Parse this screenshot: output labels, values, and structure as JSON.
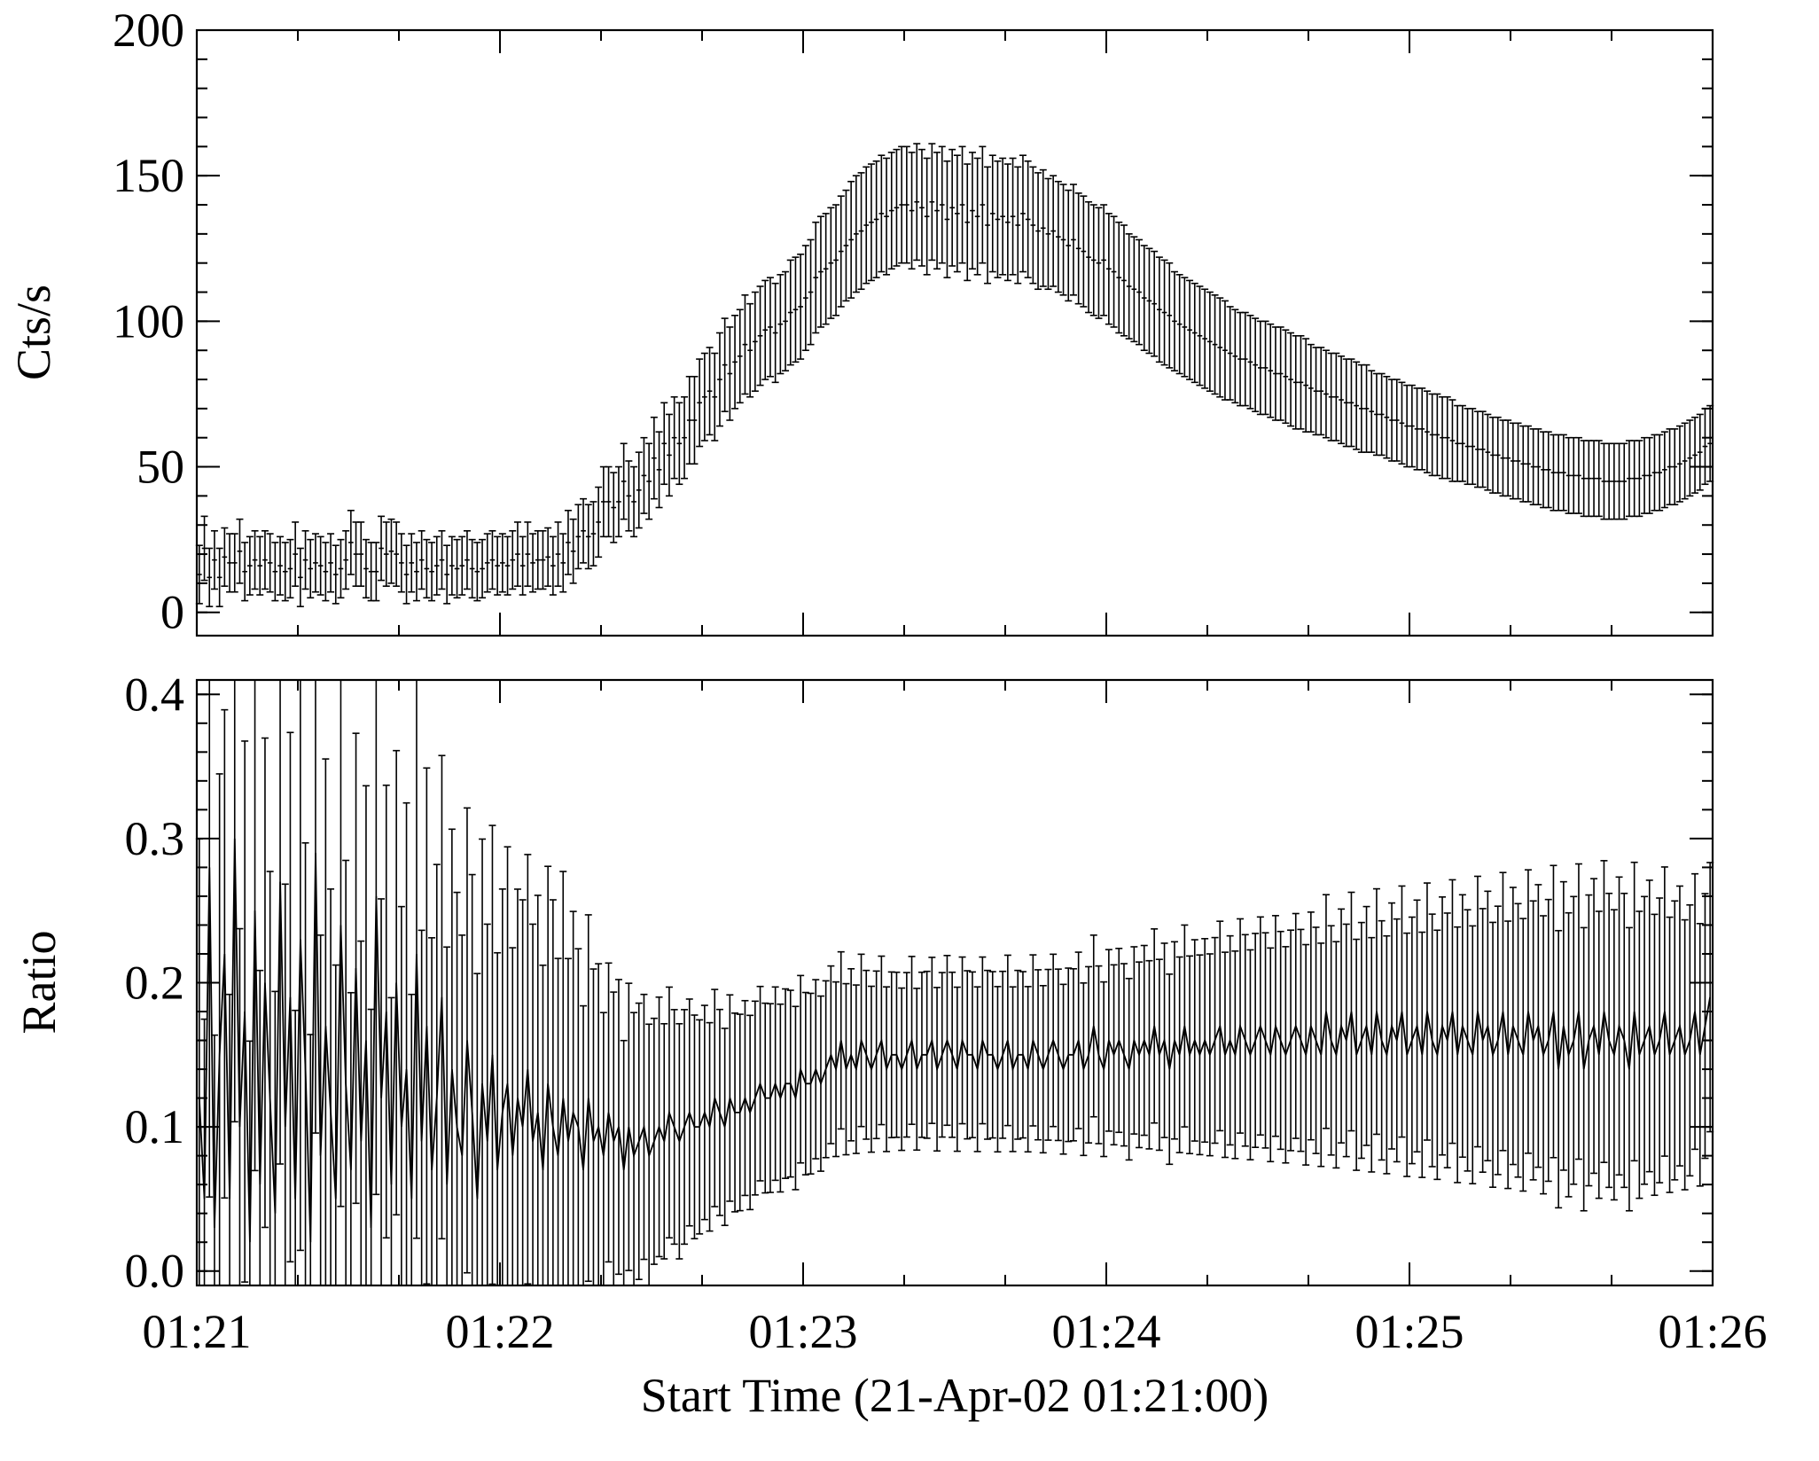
{
  "chart_data": [
    {
      "type": "scatter",
      "panel": "top",
      "ylabel": "Cts/s",
      "ylim": [
        -8,
        200
      ],
      "yticks": [
        "0",
        "50",
        "100",
        "150",
        "200"
      ],
      "xlim": [
        0,
        300
      ],
      "xlabel": "",
      "show_x_tick_labels": false,
      "error_bars": true,
      "bin_seconds": 1,
      "series": [
        {
          "values": [
            13,
            22,
            12,
            18,
            12,
            19,
            17,
            17,
            21,
            14,
            16,
            18,
            16,
            18,
            17,
            14,
            16,
            14,
            15,
            20,
            12,
            18,
            15,
            17,
            16,
            14,
            17,
            13,
            15,
            18,
            24,
            20,
            20,
            15,
            14,
            14,
            22,
            20,
            21,
            20,
            17,
            13,
            17,
            14,
            18,
            15,
            14,
            16,
            18,
            13,
            16,
            15,
            16,
            18,
            15,
            14,
            15,
            17,
            18,
            16,
            17,
            16,
            18,
            20,
            16,
            20,
            17,
            18,
            18,
            19,
            16,
            20,
            17,
            24,
            21,
            26,
            28,
            26,
            27,
            31,
            38,
            38,
            36,
            38,
            45,
            40,
            38,
            42,
            47,
            45,
            53,
            49,
            58,
            54,
            60,
            58,
            60,
            66,
            66,
            72,
            74,
            76,
            74,
            80,
            85,
            82,
            86,
            88,
            92,
            90,
            93,
            95,
            97,
            98,
            96,
            99,
            100,
            103,
            104,
            105,
            108,
            110,
            115,
            117,
            118,
            120,
            121,
            124,
            126,
            128,
            130,
            131,
            133,
            134,
            135,
            137,
            136,
            138,
            139,
            140,
            140,
            138,
            141,
            139,
            136,
            141,
            138,
            140,
            135,
            139,
            137,
            140,
            134,
            138,
            136,
            140,
            133,
            137,
            135,
            136,
            134,
            136,
            133,
            137,
            135,
            133,
            131,
            132,
            130,
            131,
            129,
            128,
            126,
            128,
            125,
            124,
            122,
            121,
            120,
            121,
            118,
            117,
            115,
            114,
            112,
            111,
            110,
            108,
            107,
            106,
            104,
            103,
            102,
            100,
            99,
            98,
            97,
            96,
            95,
            94,
            93,
            92,
            91,
            90,
            89,
            88,
            87,
            87,
            86,
            85,
            84,
            84,
            83,
            82,
            82,
            81,
            80,
            79,
            79,
            78,
            77,
            76,
            76,
            75,
            74,
            74,
            73,
            72,
            72,
            71,
            70,
            70,
            69,
            68,
            68,
            67,
            66,
            66,
            65,
            64,
            64,
            63,
            63,
            62,
            61,
            61,
            60,
            60,
            59,
            58,
            58,
            57,
            57,
            56,
            56,
            55,
            54,
            54,
            53,
            53,
            52,
            52,
            51,
            51,
            50,
            50,
            49,
            49,
            48,
            48,
            48,
            47,
            47,
            47,
            46,
            46,
            46,
            46,
            45,
            45,
            45,
            45,
            45,
            46,
            46,
            46,
            47,
            47,
            48,
            48,
            49,
            50,
            50,
            51,
            52,
            53,
            54,
            55,
            57,
            58
          ],
          "errors": [
            10,
            11,
            10,
            10,
            10,
            10,
            10,
            10,
            11,
            10,
            10,
            10,
            10,
            10,
            10,
            10,
            10,
            10,
            10,
            11,
            10,
            10,
            10,
            10,
            10,
            10,
            10,
            10,
            10,
            10,
            11,
            11,
            11,
            10,
            10,
            10,
            11,
            11,
            11,
            11,
            10,
            10,
            10,
            10,
            10,
            10,
            10,
            10,
            10,
            10,
            10,
            10,
            10,
            10,
            10,
            10,
            10,
            10,
            10,
            10,
            10,
            10,
            10,
            11,
            10,
            11,
            10,
            10,
            10,
            10,
            10,
            11,
            10,
            11,
            11,
            11,
            11,
            11,
            11,
            12,
            12,
            12,
            12,
            12,
            13,
            12,
            12,
            13,
            13,
            13,
            14,
            13,
            14,
            14,
            14,
            14,
            14,
            15,
            15,
            15,
            15,
            15,
            15,
            16,
            16,
            16,
            16,
            16,
            17,
            16,
            17,
            17,
            17,
            17,
            17,
            17,
            17,
            18,
            18,
            18,
            18,
            18,
            19,
            19,
            19,
            19,
            19,
            19,
            19,
            20,
            20,
            20,
            20,
            20,
            20,
            20,
            20,
            20,
            20,
            20,
            20,
            20,
            20,
            20,
            20,
            20,
            20,
            20,
            20,
            20,
            20,
            20,
            20,
            20,
            20,
            20,
            20,
            20,
            20,
            20,
            20,
            20,
            20,
            20,
            20,
            20,
            20,
            20,
            19,
            19,
            19,
            19,
            19,
            19,
            19,
            19,
            19,
            19,
            19,
            19,
            19,
            19,
            19,
            19,
            18,
            18,
            18,
            18,
            18,
            18,
            18,
            18,
            18,
            17,
            17,
            17,
            17,
            17,
            17,
            17,
            17,
            17,
            17,
            17,
            16,
            16,
            16,
            16,
            16,
            16,
            16,
            16,
            16,
            16,
            16,
            16,
            16,
            16,
            16,
            16,
            15,
            15,
            15,
            15,
            15,
            15,
            15,
            15,
            15,
            15,
            15,
            15,
            14,
            14,
            14,
            14,
            14,
            14,
            14,
            14,
            14,
            14,
            14,
            14,
            14,
            14,
            14,
            14,
            14,
            13,
            13,
            13,
            13,
            13,
            13,
            13,
            13,
            13,
            13,
            13,
            13,
            13,
            13,
            13,
            13,
            13,
            13,
            13,
            13,
            13,
            13,
            13,
            13,
            13,
            13,
            13,
            13,
            13,
            13,
            13,
            13,
            13,
            13,
            13,
            13,
            13,
            13,
            13,
            13,
            13,
            13,
            13,
            13,
            13,
            13,
            13,
            13,
            13,
            13,
            13
          ]
        }
      ]
    },
    {
      "type": "line",
      "panel": "bottom",
      "ylabel": "Ratio",
      "ylim": [
        -0.01,
        0.41
      ],
      "yticks": [
        "0.0",
        "0.1",
        "0.2",
        "0.3",
        "0.4"
      ],
      "xlim": [
        0,
        300
      ],
      "xticks": [
        "01:21",
        "01:22",
        "01:23",
        "01:24",
        "01:25",
        "01:26"
      ],
      "xlabel": "Start Time (21-Apr-02 01:21:00)",
      "error_bars": true,
      "series": [
        {
          "values": [
            0.12,
            0.05,
            0.28,
            0.03,
            0.15,
            0.22,
            0.05,
            0.3,
            0.1,
            0.18,
            0.02,
            0.25,
            0.06,
            0.2,
            0.12,
            0.04,
            0.27,
            0.1,
            0.19,
            0.05,
            0.23,
            0.14,
            0.02,
            0.29,
            0.08,
            0.17,
            0.11,
            0.05,
            0.24,
            0.13,
            0.07,
            0.21,
            0.09,
            0.16,
            0.03,
            0.26,
            0.12,
            0.18,
            0.06,
            0.2,
            0.1,
            0.14,
            0.05,
            0.22,
            0.09,
            0.17,
            0.07,
            0.12,
            0.19,
            0.06,
            0.14,
            0.1,
            0.08,
            0.16,
            0.11,
            0.05,
            0.13,
            0.09,
            0.15,
            0.07,
            0.11,
            0.13,
            0.08,
            0.12,
            0.1,
            0.14,
            0.09,
            0.11,
            0.07,
            0.13,
            0.1,
            0.08,
            0.12,
            0.09,
            0.11,
            0.1,
            0.07,
            0.12,
            0.09,
            0.1,
            0.08,
            0.11,
            0.09,
            0.1,
            0.07,
            0.1,
            0.08,
            0.09,
            0.1,
            0.08,
            0.09,
            0.1,
            0.09,
            0.11,
            0.1,
            0.09,
            0.1,
            0.11,
            0.1,
            0.1,
            0.11,
            0.1,
            0.12,
            0.11,
            0.1,
            0.12,
            0.11,
            0.11,
            0.12,
            0.11,
            0.12,
            0.13,
            0.12,
            0.12,
            0.13,
            0.12,
            0.13,
            0.13,
            0.12,
            0.14,
            0.13,
            0.13,
            0.14,
            0.13,
            0.14,
            0.15,
            0.14,
            0.16,
            0.14,
            0.15,
            0.14,
            0.16,
            0.15,
            0.14,
            0.15,
            0.16,
            0.14,
            0.15,
            0.15,
            0.14,
            0.15,
            0.16,
            0.14,
            0.15,
            0.15,
            0.16,
            0.14,
            0.15,
            0.16,
            0.15,
            0.14,
            0.16,
            0.15,
            0.15,
            0.14,
            0.16,
            0.15,
            0.15,
            0.14,
            0.15,
            0.16,
            0.14,
            0.15,
            0.15,
            0.14,
            0.16,
            0.15,
            0.14,
            0.15,
            0.16,
            0.15,
            0.14,
            0.15,
            0.15,
            0.16,
            0.14,
            0.15,
            0.17,
            0.15,
            0.14,
            0.16,
            0.15,
            0.16,
            0.15,
            0.14,
            0.16,
            0.15,
            0.16,
            0.15,
            0.17,
            0.15,
            0.16,
            0.14,
            0.16,
            0.15,
            0.17,
            0.15,
            0.16,
            0.15,
            0.16,
            0.15,
            0.16,
            0.17,
            0.15,
            0.16,
            0.15,
            0.17,
            0.16,
            0.15,
            0.16,
            0.17,
            0.16,
            0.15,
            0.17,
            0.16,
            0.15,
            0.16,
            0.17,
            0.16,
            0.15,
            0.17,
            0.16,
            0.15,
            0.18,
            0.16,
            0.15,
            0.17,
            0.16,
            0.18,
            0.15,
            0.16,
            0.17,
            0.15,
            0.18,
            0.16,
            0.15,
            0.17,
            0.16,
            0.18,
            0.15,
            0.16,
            0.17,
            0.15,
            0.18,
            0.16,
            0.15,
            0.17,
            0.16,
            0.18,
            0.15,
            0.17,
            0.16,
            0.15,
            0.18,
            0.16,
            0.17,
            0.15,
            0.16,
            0.18,
            0.15,
            0.17,
            0.16,
            0.15,
            0.18,
            0.16,
            0.17,
            0.15,
            0.16,
            0.18,
            0.14,
            0.17,
            0.15,
            0.16,
            0.18,
            0.14,
            0.16,
            0.17,
            0.15,
            0.18,
            0.16,
            0.15,
            0.17,
            0.16,
            0.14,
            0.18,
            0.15,
            0.16,
            0.17,
            0.15,
            0.16,
            0.18,
            0.15,
            0.16,
            0.17,
            0.15,
            0.16,
            0.18,
            0.15,
            0.17,
            0.19
          ]
        }
      ]
    }
  ],
  "labels": {
    "top_ylabel": "Cts/s",
    "bottom_ylabel": "Ratio",
    "xlabel": "Start Time (21-Apr-02 01:21:00)"
  },
  "colors": {
    "foreground": "#000000",
    "background": "#ffffff"
  }
}
